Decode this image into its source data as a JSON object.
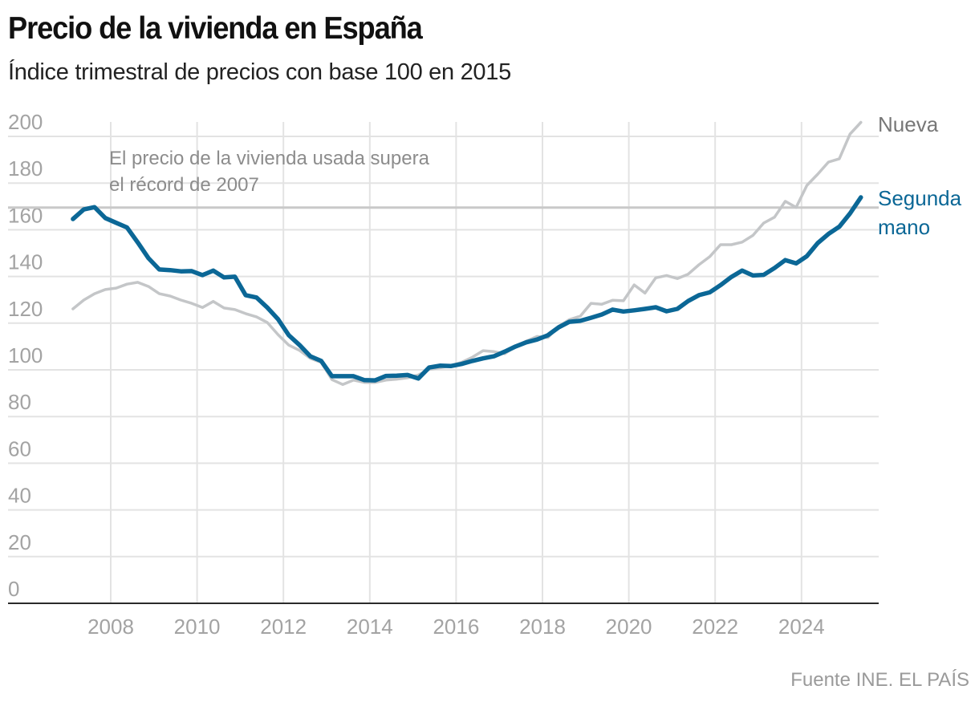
{
  "header": {
    "title": "Precio de la vivienda en España",
    "subtitle": "Índice trimestral de precios con base 100 en 2015"
  },
  "footer": {
    "source": "Fuente INE. EL PAÍS"
  },
  "chart_data": {
    "type": "line",
    "title": "Precio de la vivienda en España",
    "subtitle": "Índice trimestral de precios con base 100 en 2015",
    "xlabel": "",
    "ylabel": "",
    "ylim": [
      0,
      200
    ],
    "xlim": [
      2007,
      2025.5
    ],
    "grid": true,
    "legend": "direct-labels-right",
    "y_ticks": [
      "0",
      "20",
      "40",
      "60",
      "80",
      "100",
      "120",
      "140",
      "160",
      "180",
      "200"
    ],
    "x_ticks": [
      "2008",
      "2010",
      "2012",
      "2014",
      "2016",
      "2018",
      "2020",
      "2022",
      "2024"
    ],
    "start_quarter": "2007T1",
    "frequency": "quarterly",
    "annotation": {
      "lines": [
        "El precio de la vivienda usada supera",
        "el récord de 2007"
      ],
      "reference_value": 169.5
    },
    "series": [
      {
        "name": "Nueva",
        "color": "#c4c6c8",
        "label_lines": [
          "Nueva"
        ],
        "values": [
          126.1,
          129.9,
          132.6,
          134.4,
          135.0,
          136.7,
          137.5,
          135.7,
          132.6,
          131.6,
          129.9,
          128.5,
          126.7,
          129.3,
          126.5,
          125.8,
          124.1,
          122.7,
          120.3,
          115.1,
          110.6,
          108.3,
          104.9,
          103.2,
          95.8,
          93.7,
          95.6,
          94.6,
          94.6,
          95.6,
          96.0,
          96.6,
          97.8,
          100.2,
          100.9,
          101.8,
          103.2,
          105.4,
          108.2,
          107.8,
          106.9,
          110.0,
          112.3,
          114.3,
          113.8,
          118.6,
          121.5,
          123.0,
          128.5,
          128.1,
          129.8,
          129.6,
          136.4,
          132.9,
          139.4,
          140.4,
          139.1,
          141.0,
          145.0,
          148.5,
          153.6,
          153.6,
          154.7,
          157.6,
          162.9,
          165.4,
          172.2,
          169.6,
          179.0,
          183.8,
          189.0,
          190.4,
          201.0,
          206.0
        ]
      },
      {
        "name": "Segunda mano",
        "color": "#0b6796",
        "label_lines": [
          "Segunda",
          "mano"
        ],
        "values": [
          164.6,
          168.7,
          169.7,
          165.0,
          163.0,
          161.0,
          154.6,
          147.8,
          143.0,
          142.7,
          142.2,
          142.3,
          140.6,
          142.5,
          139.6,
          139.9,
          132.0,
          131.0,
          126.7,
          121.7,
          114.8,
          110.6,
          105.8,
          103.8,
          97.3,
          97.3,
          97.3,
          95.6,
          95.5,
          97.4,
          97.5,
          97.8,
          96.3,
          101.0,
          101.8,
          101.6,
          102.5,
          103.8,
          104.9,
          105.8,
          107.8,
          110.0,
          111.8,
          113.0,
          114.8,
          118.2,
          120.6,
          121.0,
          122.3,
          123.7,
          125.8,
          125.0,
          125.5,
          126.1,
          126.8,
          125.1,
          126.1,
          129.5,
          132.0,
          133.2,
          136.3,
          139.8,
          142.5,
          140.4,
          140.7,
          143.6,
          147.0,
          145.6,
          148.7,
          154.3,
          158.2,
          161.3,
          167.0,
          173.9
        ]
      }
    ]
  }
}
